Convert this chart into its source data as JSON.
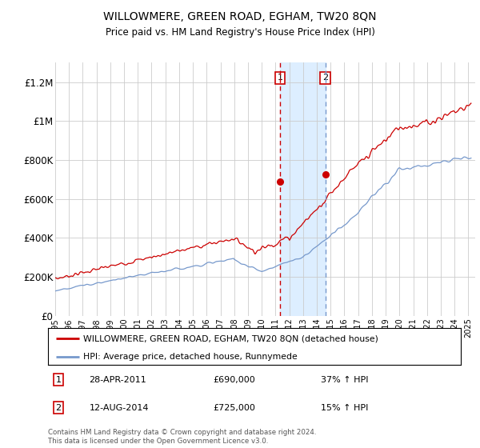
{
  "title": "WILLOWMERE, GREEN ROAD, EGHAM, TW20 8QN",
  "subtitle": "Price paid vs. HM Land Registry's House Price Index (HPI)",
  "legend_line1": "WILLOWMERE, GREEN ROAD, EGHAM, TW20 8QN (detached house)",
  "legend_line2": "HPI: Average price, detached house, Runnymede",
  "annotation1_date": "28-APR-2011",
  "annotation1_price": "£690,000",
  "annotation1_hpi": "37% ↑ HPI",
  "annotation2_date": "12-AUG-2014",
  "annotation2_price": "£725,000",
  "annotation2_hpi": "15% ↑ HPI",
  "footer": "Contains HM Land Registry data © Crown copyright and database right 2024.\nThis data is licensed under the Open Government Licence v3.0.",
  "red_line_color": "#cc0000",
  "blue_line_color": "#7799cc",
  "marker1_x": 2011.33,
  "marker2_x": 2014.62,
  "marker1_y": 690000,
  "marker2_y": 725000,
  "shading_color": "#ddeeff",
  "yticks": [
    0,
    200000,
    400000,
    600000,
    800000,
    1000000,
    1200000
  ],
  "ylabels": [
    "£0",
    "£200K",
    "£400K",
    "£600K",
    "£800K",
    "£1M",
    "£1.2M"
  ],
  "xmin": 1995.0,
  "xmax": 2025.5,
  "ymin": 0,
  "ymax": 1300000
}
